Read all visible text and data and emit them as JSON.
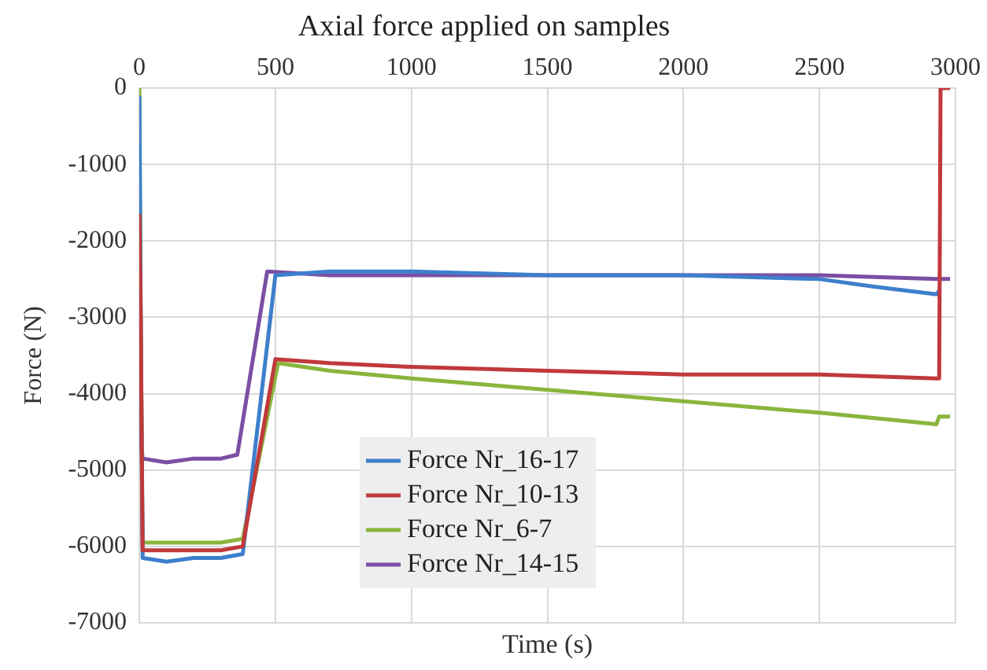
{
  "chart_data": {
    "type": "line",
    "title": "Axial force applied on samples",
    "xlabel": "Time (s)",
    "ylabel": "Force (N)",
    "xlim": [
      0,
      3000
    ],
    "xticks": [
      0,
      500,
      1000,
      1500,
      2000,
      2500,
      3000
    ],
    "ylim": [
      -7000,
      0
    ],
    "yticks": [
      -7000,
      -6000,
      -5000,
      -4000,
      -3000,
      -2000,
      -1000,
      0
    ],
    "grid": true,
    "legend": "bottom",
    "marker": "none",
    "line_style": "solid",
    "series": [
      {
        "name": "Force Nr_16-17",
        "color": "#3d7fcc",
        "x": [
          0,
          5,
          12,
          100,
          200,
          300,
          380,
          500,
          700,
          1000,
          1500,
          2000,
          2500,
          2700,
          2930,
          2940
        ],
        "values": [
          -100,
          -3000,
          -6150,
          -6200,
          -6150,
          -6150,
          -6100,
          -2450,
          -2400,
          -2400,
          -2450,
          -2450,
          -2500,
          -2600,
          -2700,
          -2650
        ]
      },
      {
        "name": "Force Nr_10-13",
        "color": "#c0393b",
        "x": [
          0,
          5,
          12,
          100,
          200,
          300,
          380,
          500,
          700,
          1000,
          1500,
          2000,
          2500,
          2930,
          2940,
          2945,
          2980
        ],
        "values": [
          -1650,
          -3000,
          -6050,
          -6050,
          -6050,
          -6050,
          -6000,
          -3550,
          -3600,
          -3650,
          -3700,
          -3750,
          -3750,
          -3800,
          -3800,
          0,
          0
        ]
      },
      {
        "name": "Force Nr_6-7",
        "color": "#8ab53d",
        "x": [
          0,
          5,
          12,
          100,
          200,
          300,
          380,
          510,
          700,
          1000,
          1500,
          2000,
          2500,
          2930,
          2940,
          2980
        ],
        "values": [
          0,
          -3000,
          -5950,
          -5950,
          -5950,
          -5950,
          -5900,
          -3600,
          -3700,
          -3800,
          -3950,
          -4100,
          -4250,
          -4400,
          -4300,
          -4300
        ]
      },
      {
        "name": "Force Nr_14-15",
        "color": "#7b4fa3",
        "x": [
          0,
          5,
          12,
          100,
          200,
          300,
          360,
          470,
          700,
          1000,
          1500,
          2000,
          2500,
          2930,
          2940,
          2980
        ],
        "values": [
          -4200,
          -4600,
          -4850,
          -4900,
          -4850,
          -4850,
          -4800,
          -2400,
          -2450,
          -2450,
          -2450,
          -2450,
          -2450,
          -2500,
          -2500,
          -2500
        ]
      }
    ]
  }
}
